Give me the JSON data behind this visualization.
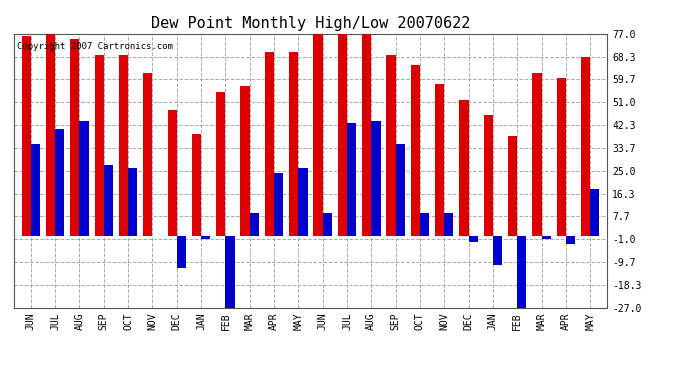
{
  "title": "Dew Point Monthly High/Low 20070622",
  "copyright": "Copyright 2007 Cartronics.com",
  "months": [
    "JUN",
    "JUL",
    "AUG",
    "SEP",
    "OCT",
    "NOV",
    "DEC",
    "JAN",
    "FEB",
    "MAR",
    "APR",
    "MAY",
    "JUN",
    "JUL",
    "AUG",
    "SEP",
    "OCT",
    "NOV",
    "DEC",
    "JAN",
    "FEB",
    "MAR",
    "APR",
    "MAY"
  ],
  "highs": [
    76,
    77,
    75,
    69,
    69,
    62,
    48,
    39,
    55,
    57,
    70,
    70,
    77,
    77,
    77,
    69,
    65,
    58,
    52,
    46,
    38,
    62,
    60,
    68
  ],
  "lows": [
    35,
    41,
    44,
    27,
    26,
    0,
    -12,
    -1,
    -27,
    9,
    24,
    26,
    9,
    43,
    44,
    35,
    9,
    9,
    -2,
    -11,
    -27,
    -1,
    -3,
    18
  ],
  "high_color": "#dd0000",
  "low_color": "#0000cc",
  "bg_color": "#ffffff",
  "plot_bg_color": "#ffffff",
  "grid_color": "#aaaaaa",
  "yticks": [
    77.0,
    68.3,
    59.7,
    51.0,
    42.3,
    33.7,
    25.0,
    16.3,
    7.7,
    -1.0,
    -9.7,
    -18.3,
    -27.0
  ],
  "ylim": [
    -27.0,
    77.0
  ],
  "bar_width": 0.38,
  "title_fontsize": 11,
  "tick_fontsize": 7,
  "copyright_fontsize": 6.5
}
